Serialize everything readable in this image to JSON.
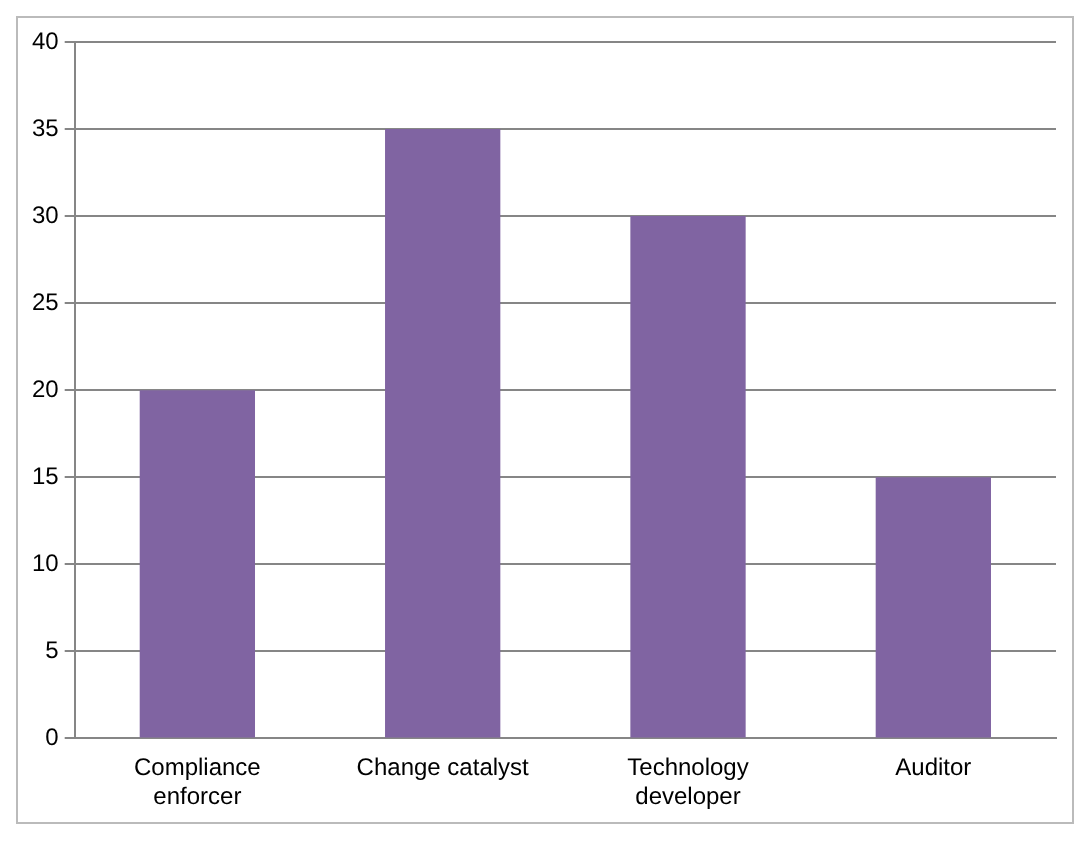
{
  "chart_data": {
    "type": "bar",
    "categories": [
      "Compliance enforcer",
      "Change catalyst",
      "Technology developer",
      "Auditor"
    ],
    "values": [
      20,
      35,
      30,
      15
    ],
    "color": "#8064a2",
    "ylim": [
      0,
      40
    ],
    "yticks": [
      0,
      5,
      10,
      15,
      20,
      25,
      30,
      35,
      40
    ],
    "grid": "y",
    "legend": false
  }
}
